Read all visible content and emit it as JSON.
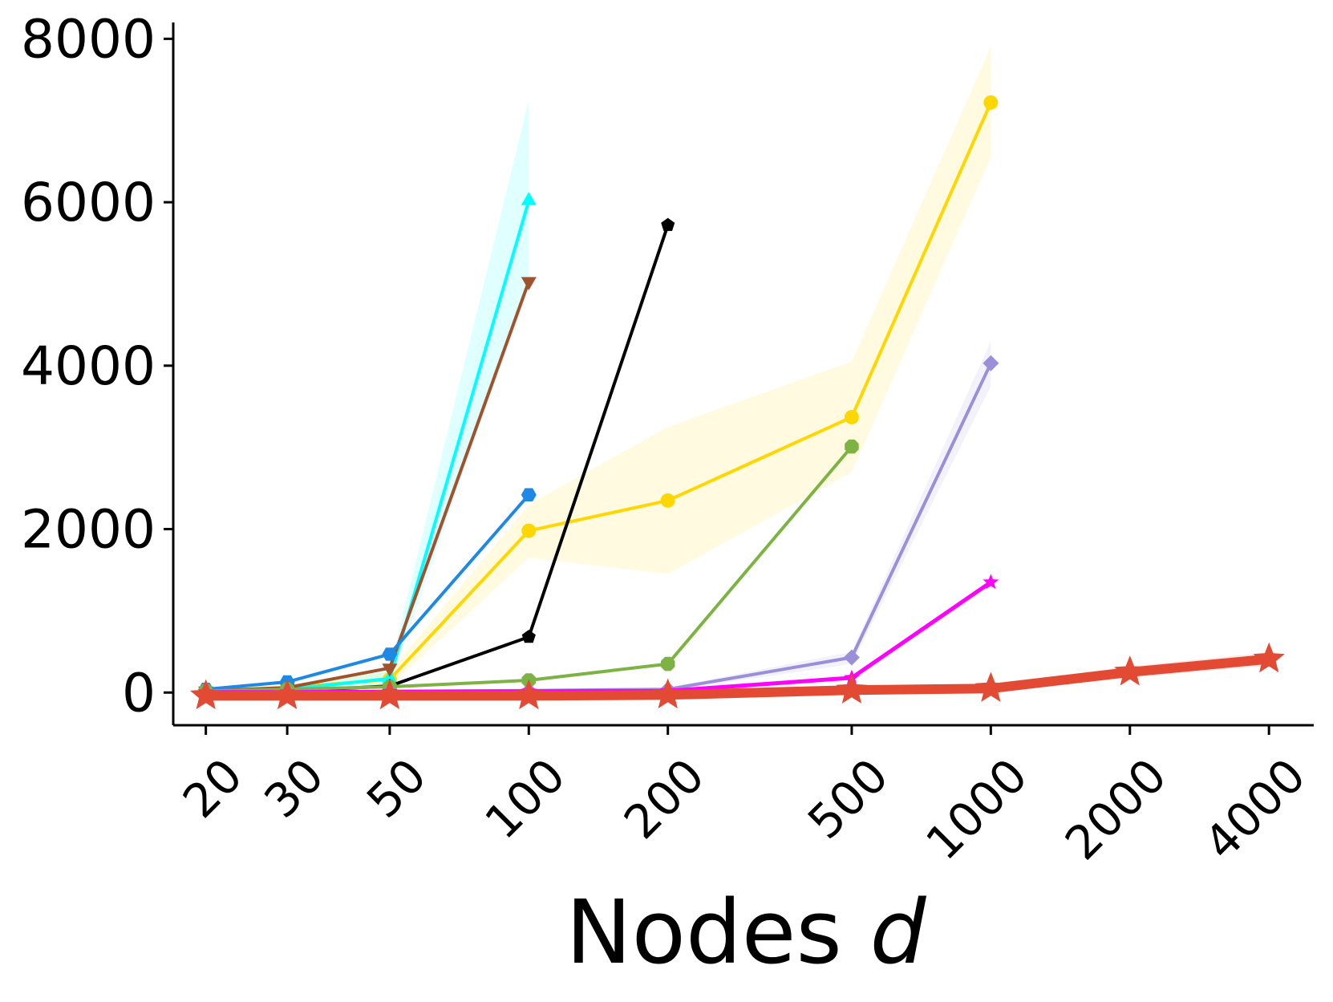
{
  "chart_data": {
    "type": "line",
    "title": "",
    "xlabel": "Nodes",
    "xlabel_var": "d",
    "ylabel": "",
    "xscale": "log",
    "x_ticks": [
      20,
      30,
      50,
      100,
      200,
      500,
      1000,
      2000,
      4000
    ],
    "x_tick_labels": [
      "20",
      "30",
      "50",
      "100",
      "200",
      "500",
      "1000",
      "2000",
      "4000"
    ],
    "y_ticks": [
      0,
      2000,
      4000,
      6000,
      8000
    ],
    "y_tick_labels": [
      "0",
      "2000",
      "4000",
      "6000",
      "8000"
    ],
    "xlim": [
      17,
      5000
    ],
    "ylim": [
      -400,
      8200
    ],
    "grid": false,
    "legend": "none",
    "series": [
      {
        "color": "#FFD700",
        "marker": "circle",
        "width": 4,
        "x": [
          20,
          30,
          50,
          100,
          200,
          500,
          1000
        ],
        "y": [
          20,
          60,
          160,
          1980,
          2350,
          3370,
          7220
        ],
        "band_low": [
          0,
          20,
          80,
          1650,
          1450,
          2700,
          6550
        ],
        "band_high": [
          40,
          100,
          260,
          2300,
          3250,
          4050,
          7900
        ]
      },
      {
        "color": "#00FFFF",
        "marker": "triangle-up",
        "width": 4,
        "x": [
          20,
          30,
          50,
          100
        ],
        "y": [
          10,
          40,
          170,
          6020
        ],
        "band_low": [
          0,
          20,
          100,
          5000
        ],
        "band_high": [
          30,
          70,
          300,
          7250
        ]
      },
      {
        "color": "#A0522D",
        "marker": "triangle-down",
        "width": 4,
        "x": [
          20,
          30,
          50,
          100
        ],
        "y": [
          20,
          60,
          300,
          5030
        ]
      },
      {
        "color": "#1E88E5",
        "marker": "hexagon",
        "width": 4,
        "x": [
          20,
          30,
          50,
          100
        ],
        "y": [
          40,
          130,
          470,
          2420
        ]
      },
      {
        "color": "#000000",
        "marker": "pentagon",
        "width": 4,
        "x": [
          20,
          30,
          50,
          100,
          200
        ],
        "y": [
          5,
          15,
          80,
          680,
          5720
        ]
      },
      {
        "color": "#7CB342",
        "marker": "octagon",
        "width": 4,
        "x": [
          20,
          30,
          50,
          100,
          200,
          500
        ],
        "y": [
          20,
          40,
          70,
          150,
          350,
          3010
        ]
      },
      {
        "color": "#9B8FD9",
        "marker": "diamond",
        "width": 4,
        "x": [
          20,
          30,
          50,
          100,
          200,
          500,
          1000
        ],
        "y": [
          5,
          10,
          15,
          25,
          40,
          430,
          4030
        ],
        "band_low": [
          0,
          0,
          0,
          10,
          20,
          350,
          3750
        ],
        "band_high": [
          20,
          20,
          30,
          40,
          60,
          500,
          4300
        ]
      },
      {
        "color": "#FF00FF",
        "marker": "star",
        "width": 5,
        "x": [
          20,
          30,
          50,
          100,
          200,
          500,
          1000
        ],
        "y": [
          5,
          5,
          10,
          15,
          20,
          180,
          1350
        ]
      },
      {
        "color": "#E24A33",
        "marker": "star",
        "width": 12,
        "x": [
          20,
          30,
          50,
          100,
          200,
          500,
          1000,
          2000,
          4000
        ],
        "y": [
          -40,
          -40,
          -40,
          -40,
          -30,
          30,
          50,
          250,
          410
        ],
        "band_low": [
          -80,
          -80,
          -80,
          -80,
          -70,
          -10,
          0,
          180,
          330
        ],
        "band_high": [
          0,
          0,
          0,
          0,
          10,
          70,
          100,
          320,
          490
        ]
      }
    ]
  }
}
